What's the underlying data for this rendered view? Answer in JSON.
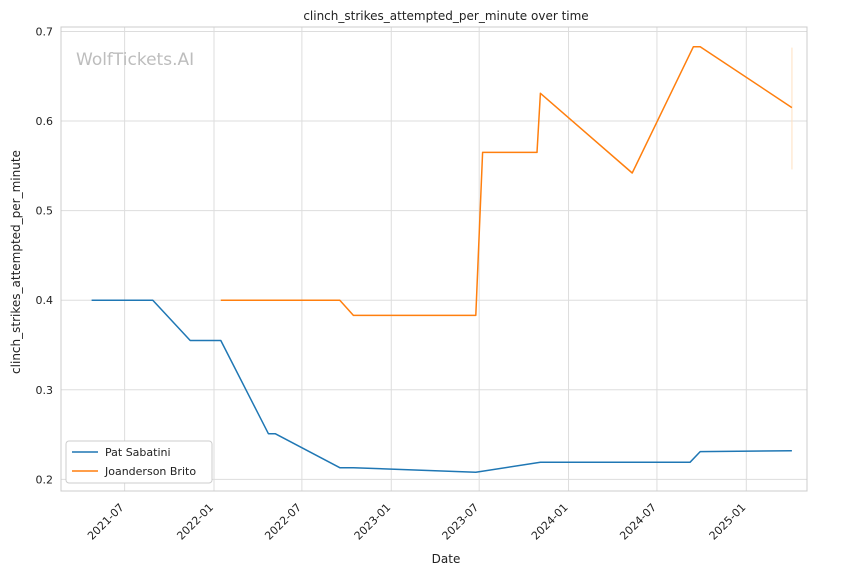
{
  "chart_data": {
    "type": "line",
    "title": "clinch_strikes_attempted_per_minute over time",
    "xlabel": "Date",
    "ylabel": "clinch_strikes_attempted_per_minute",
    "watermark": "WolfTickets.AI",
    "xlim": [
      "2021-02-20",
      "2025-05-06"
    ],
    "ylim": [
      0.187,
      0.705
    ],
    "x_ticks": [
      "2021-07",
      "2022-01",
      "2022-07",
      "2023-01",
      "2023-07",
      "2024-01",
      "2024-07",
      "2025-01"
    ],
    "y_ticks": [
      0.2,
      0.3,
      0.4,
      0.5,
      0.6,
      0.7
    ],
    "y_tick_labels": [
      "0.2",
      "0.3",
      "0.4",
      "0.5",
      "0.6",
      "0.7"
    ],
    "grid": true,
    "legend_position": "lower-left",
    "series": [
      {
        "name": "Pat Sabatini",
        "color": "#1f77b4",
        "points": [
          {
            "x": "2021-04-24",
            "y": 0.4
          },
          {
            "x": "2021-08-28",
            "y": 0.4
          },
          {
            "x": "2021-11-13",
            "y": 0.355
          },
          {
            "x": "2022-01-15",
            "y": 0.355
          },
          {
            "x": "2022-04-23",
            "y": 0.251
          },
          {
            "x": "2022-05-07",
            "y": 0.251
          },
          {
            "x": "2022-09-17",
            "y": 0.213
          },
          {
            "x": "2022-10-15",
            "y": 0.213
          },
          {
            "x": "2023-06-24",
            "y": 0.208
          },
          {
            "x": "2023-11-04",
            "y": 0.219
          },
          {
            "x": "2024-09-07",
            "y": 0.219
          },
          {
            "x": "2024-09-28",
            "y": 0.231
          },
          {
            "x": "2025-04-05",
            "y": 0.232
          }
        ]
      },
      {
        "name": "Joanderson Brito",
        "color": "#ff7f0e",
        "points": [
          {
            "x": "2022-01-15",
            "y": 0.4
          },
          {
            "x": "2022-09-17",
            "y": 0.4
          },
          {
            "x": "2022-10-15",
            "y": 0.383
          },
          {
            "x": "2023-06-24",
            "y": 0.383
          },
          {
            "x": "2023-07-08",
            "y": 0.565
          },
          {
            "x": "2023-10-28",
            "y": 0.565
          },
          {
            "x": "2023-11-04",
            "y": 0.631
          },
          {
            "x": "2024-05-11",
            "y": 0.542
          },
          {
            "x": "2024-09-14",
            "y": 0.683
          },
          {
            "x": "2024-09-28",
            "y": 0.683
          },
          {
            "x": "2025-04-05",
            "y": 0.615
          }
        ]
      }
    ],
    "annotations": [
      {
        "type": "vline",
        "x": "2025-04-05",
        "y_range": [
          0.546,
          0.682
        ],
        "color": "#ffe0c0"
      }
    ]
  }
}
